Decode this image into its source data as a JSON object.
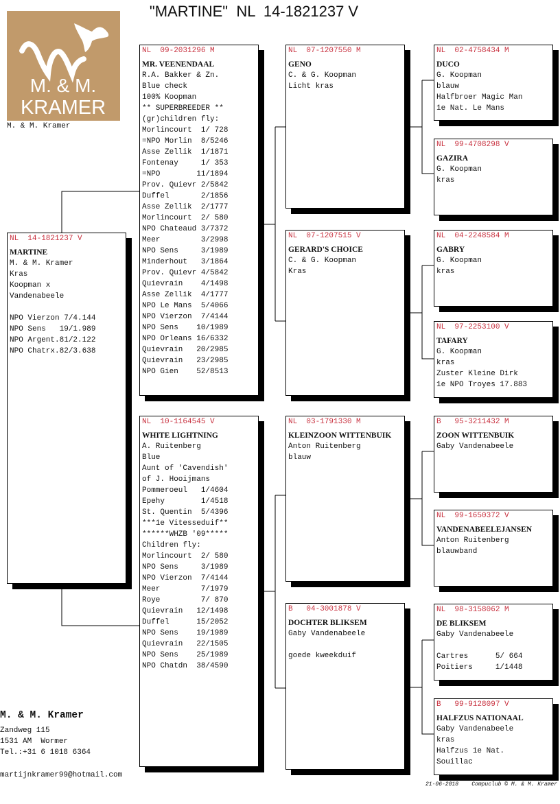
{
  "title": "\"MARTINE\"  NL  14-1821237 V",
  "logo": {
    "text_line1": "M. & M.",
    "text_line2": "KRAMER",
    "icon": "pigeon-icon",
    "color": "#c19a6b"
  },
  "logo_caption": "M. & M. Kramer",
  "colors": {
    "ring": "#c8313f",
    "shadow": "#000000"
  },
  "pedigree": [
    {
      "role": "subject",
      "ring": "NL  14-1821237 V",
      "name": "MARTINE",
      "lines": [
        "M. & M. Kramer",
        "Kras",
        "Koopman x",
        "Vandenabeele",
        "",
        "NPO Vierzon 7/4.144",
        "NPO Sens   19/1.989",
        "NPO Argent.81/2.122",
        "NPO Chatrx.82/3.638"
      ]
    },
    {
      "role": "sire",
      "ring": "NL  09-2031296 M",
      "name": "MR. VEENENDAAL",
      "lines": [
        "R.A. Bakker & Zn.",
        "Blue check",
        "100% Koopman",
        "** SUPERBREEDER **",
        "(gr)children fly:",
        "Morlincourt  1/ 728",
        "=NPO Morlin  8/5246",
        "Asse Zellik  1/1871",
        "Fontenay     1/ 353",
        "=NPO        11/1894",
        "Prov. Quievr 2/5842",
        "Duffel       2/1856",
        "Asse Zellik  2/1777",
        "Morlincourt  2/ 580",
        "NPO Chateaud 3/7372",
        "Meer         3/2998",
        "NPO Sens     3/1989",
        "Minderhout   3/1864",
        "Prov. Quievr 4/5842",
        "Quievrain    4/1498",
        "Asse Zellik  4/1777",
        "NPO Le Mans  5/4066",
        "NPO Vierzon  7/4144",
        "NPO Sens    10/1989",
        "NPO Orleans 16/6332",
        "Quievrain   20/2985",
        "Quievrain   23/2985",
        "NPO Gien    52/8513"
      ]
    },
    {
      "role": "dam",
      "ring": "NL  10-1164545 V",
      "name": "WHITE LIGHTNING",
      "lines": [
        "A. Ruitenberg",
        "Blue",
        "Aunt of 'Cavendish'",
        "of J. Hooijmans",
        "Pommeroeul   1/4604",
        "Epehy        1/4518",
        "St. Quentin  5/4396",
        "***1e Vitesseduif**",
        "******WHZB '09*****",
        "Children fly:",
        "Morlincourt  2/ 580",
        "NPO Sens     3/1989",
        "NPO Vierzon  7/4144",
        "Meer         7/1979",
        "Roye         7/ 870",
        "Quievrain   12/1498",
        "Duffel      15/2052",
        "NPO Sens    19/1989",
        "Quievrain   22/1505",
        "NPO Sens    25/1989",
        "NPO Chatdn  38/4590"
      ]
    },
    {
      "role": "sire-sire",
      "ring": "NL  07-1207550 M",
      "name": "GENO",
      "lines": [
        "C. & G. Koopman",
        "Licht kras"
      ]
    },
    {
      "role": "sire-dam",
      "ring": "NL  07-1207515 V",
      "name": "GERARD'S CHOICE",
      "lines": [
        "C. & G. Koopman",
        "Kras"
      ]
    },
    {
      "role": "dam-sire",
      "ring": "NL  03-1791330 M",
      "name": "KLEINZOON WITTENBUIK",
      "lines": [
        "Anton Ruitenberg",
        "blauw"
      ]
    },
    {
      "role": "dam-dam",
      "ring": "B   04-3001878 V",
      "name": "DOCHTER BLIKSEM",
      "lines": [
        "Gaby Vandenabeele",
        "",
        "goede kweekduif"
      ]
    },
    {
      "role": "ss-sire",
      "ring": "NL  02-4758434 M",
      "name": "DUCO",
      "lines": [
        "G. Koopman",
        "blauw",
        "Halfbroer Magic Man",
        "1e Nat. Le Mans"
      ]
    },
    {
      "role": "ss-dam",
      "ring": "NL  99-4708298 V",
      "name": "GAZIRA",
      "lines": [
        "G. Koopman",
        "kras"
      ]
    },
    {
      "role": "sd-sire",
      "ring": "NL  04-2248584 M",
      "name": "GABRY",
      "lines": [
        "G. Koopman",
        "kras"
      ]
    },
    {
      "role": "sd-dam",
      "ring": "NL  97-2253100 V",
      "name": "TAFARY",
      "lines": [
        "G. Koopman",
        "kras",
        "Zuster Kleine Dirk",
        "1e NPO Troyes 17.883"
      ]
    },
    {
      "role": "ds-sire",
      "ring": "B   95-3211432 M",
      "name": "ZOON WITTENBUIK",
      "lines": [
        "Gaby Vandenabeele"
      ]
    },
    {
      "role": "ds-dam",
      "ring": "NL  99-1650372 V",
      "name": "VANDENABEELEJANSEN",
      "lines": [
        "Anton Ruitenberg",
        "blauwband"
      ]
    },
    {
      "role": "dd-sire",
      "ring": "NL  98-3158062 M",
      "name": "DE BLIKSEM",
      "lines": [
        "Gaby Vandenabeele",
        "",
        "Cartres      5/ 664",
        "Poitiers     1/1448"
      ]
    },
    {
      "role": "dd-dam",
      "ring": "B   99-9128097 V",
      "name": "HALFZUS NATIONAAL",
      "lines": [
        "Gaby Vandenabeele",
        "kras",
        "Halfzus 1e Nat.",
        "Souillac"
      ]
    }
  ],
  "contact": {
    "owner": "M. & M. Kramer",
    "street": "Zandweg 115",
    "city": "1531 AM  Wormer",
    "phone": "Tel.:+31 6 1018 6364",
    "email": "martijnkramer99@hotmail.com"
  },
  "footer": "21-06-2018    Compuclub © M. & M. Kramer"
}
